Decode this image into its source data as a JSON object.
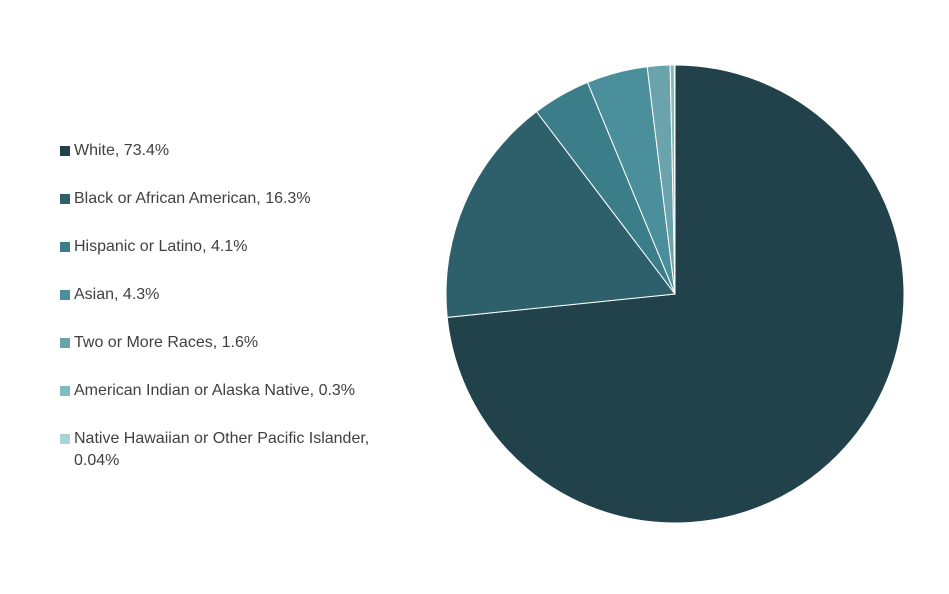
{
  "chart_data": {
    "type": "pie",
    "categories": [
      "White, 73.4%",
      "Black or African American, 16.3%",
      "Hispanic or Latino, 4.1%",
      "Asian, 4.3%",
      "Two or More Races, 1.6%",
      "American Indian or Alaska Native, 0.3%",
      "Native Hawaiian or Other Pacific Islander, 0.04%"
    ],
    "values": [
      73.4,
      16.3,
      4.1,
      4.3,
      1.6,
      0.3,
      0.04
    ],
    "colors": [
      "#21424a",
      "#2e606b",
      "#3b7d89",
      "#4a8f9b",
      "#6aa3ab",
      "#80bcc4",
      "#a8d3d8"
    ],
    "legend": "left"
  }
}
